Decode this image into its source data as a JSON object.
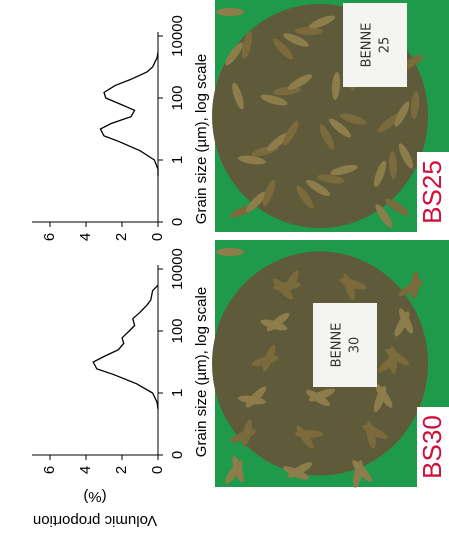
{
  "chart_data": [
    {
      "type": "line",
      "panel_label": "BS25",
      "photo_note": [
        "BENNE",
        "25"
      ],
      "xlabel": "Grain size (µm), log scale",
      "xscale": "log",
      "x": [
        0.3,
        0.5,
        1,
        2,
        4,
        6,
        10,
        15,
        25,
        40,
        60,
        100,
        150,
        250,
        400,
        700,
        1000,
        2000,
        3000
      ],
      "series": [
        {
          "color": "#000000",
          "values": [
            0,
            0,
            0.2,
            1.0,
            2.2,
            3.0,
            3.2,
            2.6,
            1.5,
            1.3,
            2.0,
            2.9,
            3.0,
            2.4,
            1.5,
            0.6,
            0.3,
            0.05,
            0
          ]
        }
      ],
      "xlim": [
        0.01,
        10000
      ],
      "xticks": [
        {
          "value": 0.01,
          "label": "0"
        },
        1,
        100,
        10000
      ],
      "ylim": [
        0,
        7
      ],
      "yticks": [
        0,
        2,
        4,
        6
      ]
    },
    {
      "type": "line",
      "panel_label": "BS30",
      "photo_note": [
        "BENNE",
        "30"
      ],
      "xlabel": "Grain size (µm), log scale",
      "xscale": "log",
      "ylabel": [
        "Volumic proportion",
        "(%)"
      ],
      "x": [
        0.3,
        0.5,
        1,
        2,
        4,
        6,
        10,
        15,
        25,
        40,
        60,
        100,
        150,
        250,
        400,
        700,
        1000,
        2000,
        3000
      ],
      "series": [
        {
          "color": "#000000",
          "values": [
            0,
            0.05,
            0.3,
            1.2,
            2.5,
            3.4,
            3.6,
            3.0,
            2.2,
            1.9,
            2.0,
            1.6,
            1.3,
            1.4,
            1.0,
            0.6,
            0.4,
            0.3,
            0
          ]
        }
      ],
      "xlim": [
        0.01,
        10000
      ],
      "xticks": [
        {
          "value": 0.01,
          "label": "0"
        },
        1,
        100,
        10000
      ],
      "ylim": [
        0,
        7
      ],
      "yticks": [
        0,
        2,
        4,
        6
      ]
    }
  ]
}
